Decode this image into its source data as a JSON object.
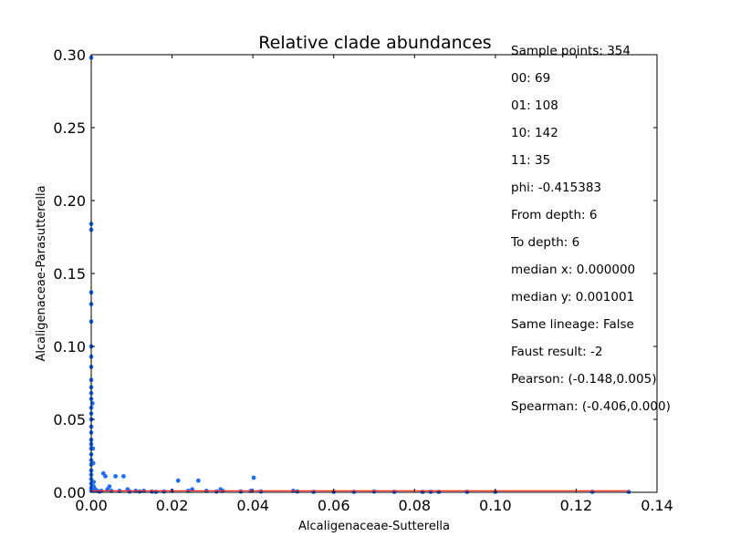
{
  "chart_data": {
    "type": "scatter",
    "title": "Relative clade abundances",
    "xlabel": "Alcaligenaceae-Sutterella",
    "ylabel": "Alcaligenaceae-Parasutterella",
    "xlim": [
      0,
      0.14
    ],
    "ylim": [
      0,
      0.3
    ],
    "xticks": [
      "0.00",
      "0.02",
      "0.04",
      "0.06",
      "0.08",
      "0.10",
      "0.12",
      "0.14"
    ],
    "yticks": [
      "0.00",
      "0.05",
      "0.10",
      "0.15",
      "0.20",
      "0.25",
      "0.30"
    ],
    "grid": false,
    "point_color": "#1f6fff",
    "fit_line_color": "#ff2a1a",
    "fit_line": [
      [
        0,
        0.001
      ],
      [
        0.133,
        0.001
      ]
    ],
    "stats": [
      "Sample points: 354",
      "00: 69",
      "01: 108",
      "10: 142",
      "11: 35",
      "phi: -0.415383",
      "From depth: 6",
      "To depth: 6",
      "median x: 0.000000",
      "median y: 0.001001",
      "Same lineage: False",
      "Faust result: -2",
      "Pearson: (-0.148,0.005)",
      "Spearman: (-0.406,0.000)"
    ],
    "points": [
      [
        0,
        0.298
      ],
      [
        0,
        0.184
      ],
      [
        0,
        0.18
      ],
      [
        0,
        0.137
      ],
      [
        0,
        0.129
      ],
      [
        0,
        0.117
      ],
      [
        0,
        0.1
      ],
      [
        0,
        0.093
      ],
      [
        0,
        0.086
      ],
      [
        0,
        0.077
      ],
      [
        0,
        0.072
      ],
      [
        0,
        0.068
      ],
      [
        0,
        0.064
      ],
      [
        0,
        0.058
      ],
      [
        0,
        0.054
      ],
      [
        0,
        0.05
      ],
      [
        0,
        0.045
      ],
      [
        0,
        0.041
      ],
      [
        0,
        0.036
      ],
      [
        0,
        0.033
      ],
      [
        0,
        0.03
      ],
      [
        0,
        0.026
      ],
      [
        0,
        0.022
      ],
      [
        0,
        0.019
      ],
      [
        0,
        0.015
      ],
      [
        0,
        0.012
      ],
      [
        0,
        0.009
      ],
      [
        0,
        0.006
      ],
      [
        0,
        0.003
      ],
      [
        0,
        0.001
      ],
      [
        0.0003,
        0.061
      ],
      [
        0.0004,
        0.03
      ],
      [
        0.0005,
        0.02
      ],
      [
        0.0006,
        0.007
      ],
      [
        0.0006,
        0.004
      ],
      [
        0.0008,
        0.001
      ],
      [
        0.001,
        0.002
      ],
      [
        0.0015,
        0.001
      ],
      [
        0.002,
        0.0005
      ],
      [
        0.0025,
        0.001
      ],
      [
        0.003,
        0.013
      ],
      [
        0.0035,
        0.011
      ],
      [
        0.004,
        0.002
      ],
      [
        0.0045,
        0.004
      ],
      [
        0.005,
        0.001
      ],
      [
        0.006,
        0.011
      ],
      [
        0.007,
        0.001
      ],
      [
        0.008,
        0.011
      ],
      [
        0.009,
        0.002
      ],
      [
        0.0095,
        0.0005
      ],
      [
        0.011,
        0.001
      ],
      [
        0.012,
        0.0005
      ],
      [
        0.013,
        0.001
      ],
      [
        0.015,
        0.0005
      ],
      [
        0.016,
        0.0003
      ],
      [
        0.018,
        0.0005
      ],
      [
        0.02,
        0.001
      ],
      [
        0.0215,
        0.008
      ],
      [
        0.024,
        0.001
      ],
      [
        0.025,
        0.002
      ],
      [
        0.0265,
        0.008
      ],
      [
        0.0285,
        0.001
      ],
      [
        0.031,
        0.0005
      ],
      [
        0.032,
        0.002
      ],
      [
        0.0325,
        0.001
      ],
      [
        0.037,
        0.0005
      ],
      [
        0.0395,
        0.001
      ],
      [
        0.0402,
        0.01
      ],
      [
        0.042,
        0.0005
      ],
      [
        0.05,
        0.001
      ],
      [
        0.051,
        0.0005
      ],
      [
        0.055,
        0.0003
      ],
      [
        0.06,
        0.0003
      ],
      [
        0.065,
        0.0003
      ],
      [
        0.07,
        0.0005
      ],
      [
        0.075,
        0.0003
      ],
      [
        0.082,
        0.0003
      ],
      [
        0.084,
        0.0003
      ],
      [
        0.086,
        0.0003
      ],
      [
        0.093,
        0.0003
      ],
      [
        0.1,
        0.0003
      ],
      [
        0.124,
        0.0003
      ],
      [
        0.133,
        0.0003
      ]
    ]
  }
}
